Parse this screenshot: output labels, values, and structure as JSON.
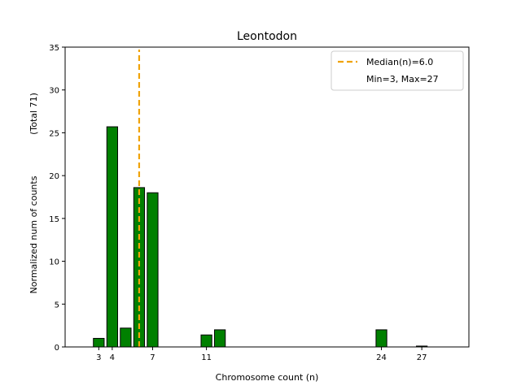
{
  "chart_data": {
    "type": "bar",
    "title": "Leontodon",
    "xlabel": "Chromosome count (n)",
    "ylabel": "Normalized num of counts",
    "ylabel_secondary": "(Total 71)",
    "xlim": [
      0.5,
      30.5
    ],
    "ylim": [
      0,
      35
    ],
    "yticks": [
      0,
      5,
      10,
      15,
      20,
      25,
      30,
      35
    ],
    "xticks": [
      3,
      4,
      7,
      11,
      24,
      27
    ],
    "bar_color": "#008000",
    "bar_edge_color": "#000000",
    "median_color": "#f0a30a",
    "x": [
      3,
      4,
      5,
      6,
      7,
      8,
      9,
      10,
      11,
      12,
      13,
      14,
      15,
      16,
      17,
      18,
      19,
      20,
      21,
      22,
      23,
      24,
      25,
      26,
      27
    ],
    "values": [
      1.0,
      25.7,
      2.2,
      18.6,
      18.0,
      0,
      0,
      0,
      1.4,
      2.0,
      0,
      0,
      0,
      0,
      0,
      0,
      0,
      0,
      0,
      0,
      0,
      2.0,
      0,
      0,
      0.1
    ],
    "median": 6.0,
    "legend": {
      "placement": "top-right",
      "entries": [
        "Median(n)=6.0",
        "Min=3, Max=27"
      ]
    }
  }
}
